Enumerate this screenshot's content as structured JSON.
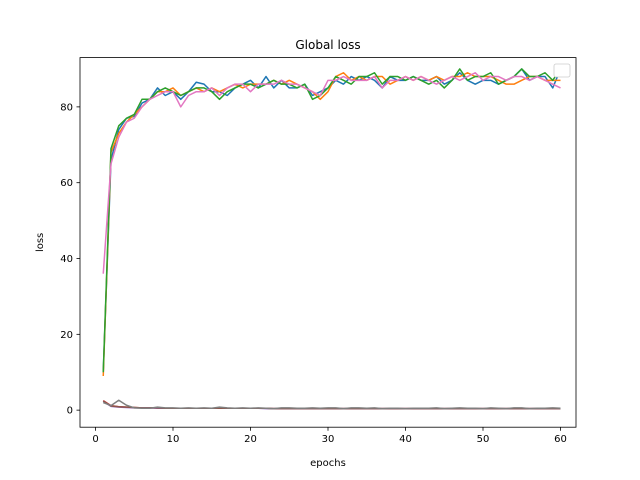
{
  "chart_data": {
    "type": "line",
    "title": "Global loss",
    "xlabel": "epochs",
    "ylabel": "loss",
    "xlim": [
      -2,
      62
    ],
    "ylim": [
      -4.5,
      93
    ],
    "xticks": [
      0,
      10,
      20,
      30,
      40,
      50,
      60
    ],
    "yticks": [
      0,
      20,
      40,
      60,
      80
    ],
    "grid": false,
    "legend": {
      "placement": "top-right",
      "entries": []
    },
    "x": [
      1,
      2,
      3,
      4,
      5,
      6,
      7,
      8,
      9,
      10,
      11,
      12,
      13,
      14,
      15,
      16,
      17,
      18,
      19,
      20,
      21,
      22,
      23,
      24,
      25,
      26,
      27,
      28,
      29,
      30,
      31,
      32,
      33,
      34,
      35,
      36,
      37,
      38,
      39,
      40,
      41,
      42,
      43,
      44,
      45,
      46,
      47,
      48,
      49,
      50,
      51,
      52,
      53,
      54,
      55,
      56,
      57,
      58,
      59,
      60
    ],
    "series": [
      {
        "color": "#1f77b4",
        "values": [
          10,
          66,
          74,
          77,
          77.5,
          81,
          82,
          85,
          83,
          84,
          82,
          84,
          86.5,
          86,
          84,
          84,
          83,
          85,
          86,
          87,
          85,
          88,
          85,
          87,
          85,
          85,
          86,
          83,
          84,
          85,
          87,
          86,
          88,
          87,
          88,
          87,
          85,
          88,
          87,
          87,
          88,
          87,
          87,
          88,
          86,
          87,
          89,
          87,
          86,
          87,
          87,
          86,
          87,
          88,
          90,
          87,
          88,
          88,
          85,
          90
        ]
      },
      {
        "color": "#ff7f0e",
        "values": [
          9,
          68,
          73,
          76,
          78,
          80,
          82,
          84,
          84,
          85,
          83,
          84,
          85,
          84,
          85,
          84,
          85,
          86,
          85,
          86,
          86,
          86,
          87,
          86,
          87,
          86,
          85,
          84,
          82,
          84,
          88,
          89,
          87,
          88,
          87,
          88,
          88,
          86,
          87,
          88,
          87,
          88,
          87,
          88,
          87,
          88,
          88,
          89,
          88,
          88,
          88,
          87,
          86,
          86,
          87,
          88,
          88,
          87,
          87,
          87
        ]
      },
      {
        "color": "#2ca02c",
        "values": [
          10,
          69,
          75,
          77,
          78,
          82,
          82,
          84,
          85,
          84,
          83,
          84,
          85,
          85,
          84,
          82,
          84,
          85,
          86,
          86,
          85,
          86,
          87,
          86,
          86,
          85,
          86,
          82,
          83,
          85,
          88,
          87,
          86,
          88,
          88,
          89,
          86,
          88,
          88,
          87,
          88,
          87,
          86,
          87,
          85,
          87,
          90,
          87,
          88,
          88,
          89,
          86,
          87,
          88,
          90,
          88,
          88,
          89,
          87,
          90
        ]
      },
      {
        "color": "#e377c2",
        "values": [
          36,
          65,
          72,
          76,
          77,
          80,
          82,
          83,
          84,
          84,
          80,
          83,
          84,
          84,
          85,
          83,
          85,
          86,
          86,
          84,
          86,
          86,
          86,
          87,
          86,
          86,
          85,
          84,
          83,
          87,
          87,
          88,
          87,
          87,
          87,
          88,
          85,
          87,
          87,
          88,
          87,
          88,
          87,
          86,
          87,
          88,
          87,
          88,
          89,
          87,
          88,
          88,
          87,
          88,
          88,
          87,
          88,
          87,
          86,
          85
        ]
      },
      {
        "color": "#d62728",
        "values": [
          2.5,
          1.2,
          0.9,
          0.8,
          0.7,
          0.6,
          0.6,
          0.6,
          0.5,
          0.5,
          0.5,
          0.5,
          0.5,
          0.5,
          0.5,
          0.5,
          0.5,
          0.5,
          0.5,
          0.5,
          0.5,
          0.5,
          0.4,
          0.4,
          0.4,
          0.4,
          0.4,
          0.4,
          0.4,
          0.4,
          0.4,
          0.4,
          0.4,
          0.4,
          0.4,
          0.4,
          0.4,
          0.4,
          0.4,
          0.4,
          0.4,
          0.4,
          0.4,
          0.4,
          0.4,
          0.4,
          0.4,
          0.4,
          0.4,
          0.4,
          0.4,
          0.4,
          0.4,
          0.4,
          0.4,
          0.4,
          0.4,
          0.4,
          0.4,
          0.4
        ]
      },
      {
        "color": "#9467bd",
        "values": [
          2.3,
          1.0,
          0.8,
          0.7,
          0.6,
          0.6,
          0.6,
          0.5,
          0.5,
          0.5,
          0.5,
          0.5,
          0.5,
          0.5,
          0.5,
          0.5,
          0.5,
          0.5,
          0.5,
          0.5,
          0.5,
          0.4,
          0.4,
          0.4,
          0.4,
          0.4,
          0.4,
          0.4,
          0.4,
          0.4,
          0.4,
          0.4,
          0.4,
          0.4,
          0.4,
          0.4,
          0.4,
          0.4,
          0.4,
          0.4,
          0.4,
          0.4,
          0.4,
          0.4,
          0.4,
          0.4,
          0.4,
          0.4,
          0.4,
          0.4,
          0.4,
          0.4,
          0.4,
          0.4,
          0.4,
          0.4,
          0.4,
          0.4,
          0.4,
          0.4
        ]
      },
      {
        "color": "#8c564b",
        "values": [
          2.4,
          1.1,
          0.9,
          0.8,
          0.7,
          0.6,
          0.6,
          0.6,
          0.5,
          0.5,
          0.5,
          0.5,
          0.5,
          0.5,
          0.5,
          0.5,
          0.5,
          0.5,
          0.5,
          0.5,
          0.5,
          0.5,
          0.4,
          0.4,
          0.4,
          0.4,
          0.4,
          0.4,
          0.4,
          0.4,
          0.4,
          0.4,
          0.4,
          0.4,
          0.4,
          0.4,
          0.4,
          0.4,
          0.4,
          0.4,
          0.4,
          0.4,
          0.4,
          0.4,
          0.4,
          0.4,
          0.4,
          0.4,
          0.4,
          0.4,
          0.4,
          0.4,
          0.4,
          0.4,
          0.4,
          0.4,
          0.4,
          0.4,
          0.4,
          0.4
        ]
      },
      {
        "color": "#7f7f7f",
        "values": [
          2.0,
          1.2,
          2.6,
          1.3,
          0.6,
          0.5,
          0.5,
          0.8,
          0.6,
          0.6,
          0.5,
          0.6,
          0.5,
          0.6,
          0.5,
          0.8,
          0.6,
          0.5,
          0.6,
          0.5,
          0.6,
          0.5,
          0.4,
          0.6,
          0.6,
          0.5,
          0.5,
          0.6,
          0.5,
          0.6,
          0.6,
          0.4,
          0.6,
          0.6,
          0.5,
          0.6,
          0.4,
          0.5,
          0.5,
          0.4,
          0.5,
          0.5,
          0.5,
          0.6,
          0.4,
          0.5,
          0.6,
          0.5,
          0.5,
          0.4,
          0.6,
          0.5,
          0.4,
          0.6,
          0.6,
          0.4,
          0.5,
          0.5,
          0.6,
          0.5
        ]
      }
    ]
  }
}
